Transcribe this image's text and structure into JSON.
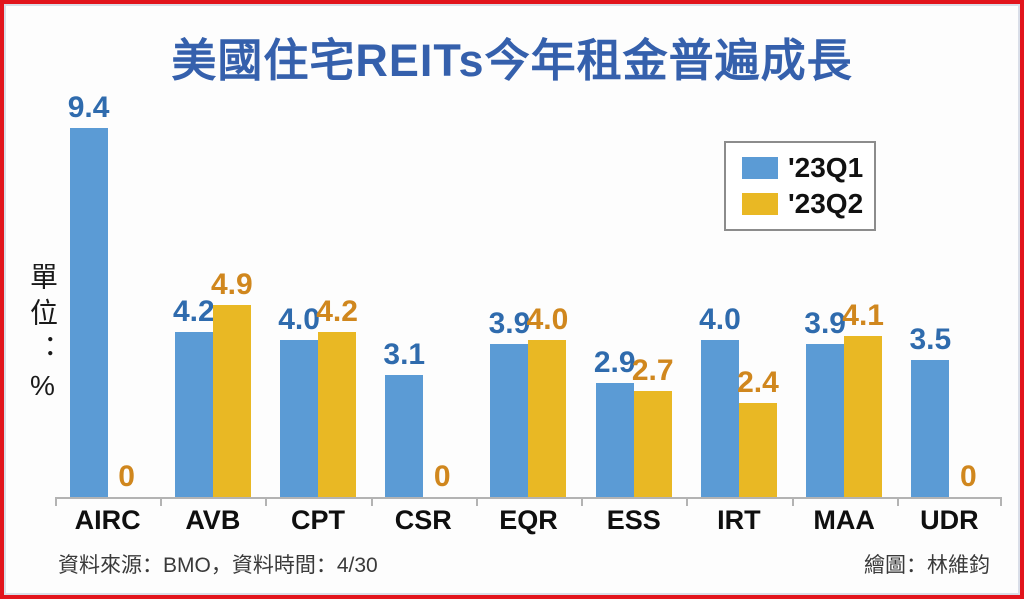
{
  "page": {
    "footer_left": "資料來源：BMO，資料時間：4/30",
    "footer_right": "繪圖：林維鈞"
  },
  "chart_data": {
    "type": "bar",
    "title": "美國住宅REITs今年租金普遍成長",
    "unit_label": "單位：%",
    "categories": [
      "AIRC",
      "AVB",
      "CPT",
      "CSR",
      "EQR",
      "ESS",
      "IRT",
      "MAA",
      "UDR"
    ],
    "series": [
      {
        "name": "'23Q1",
        "color": "#5B9BD5",
        "label_color": "#2F6BAD",
        "values": [
          9.4,
          4.2,
          4.0,
          3.1,
          3.9,
          2.9,
          4.0,
          3.9,
          3.5
        ]
      },
      {
        "name": "'23Q2",
        "color": "#E9B824",
        "label_color": "#D0871E",
        "values": [
          0,
          4.9,
          4.2,
          0,
          4.0,
          2.7,
          2.4,
          4.1,
          0
        ]
      }
    ],
    "ylim": [
      0,
      10.2
    ],
    "grid": false,
    "legend_position": "upper-right",
    "value_labels": true,
    "zero_shown_as_label_only": true
  },
  "colors": {
    "frame_border": "#E2141C",
    "frame_inner_line": "#D9DEE8",
    "title": "#3560AC",
    "axis": "#B3B3B3",
    "x_label": "#0F0F0F",
    "footer_text": "#3A3A3A",
    "legend_border": "#8C8C8C"
  }
}
